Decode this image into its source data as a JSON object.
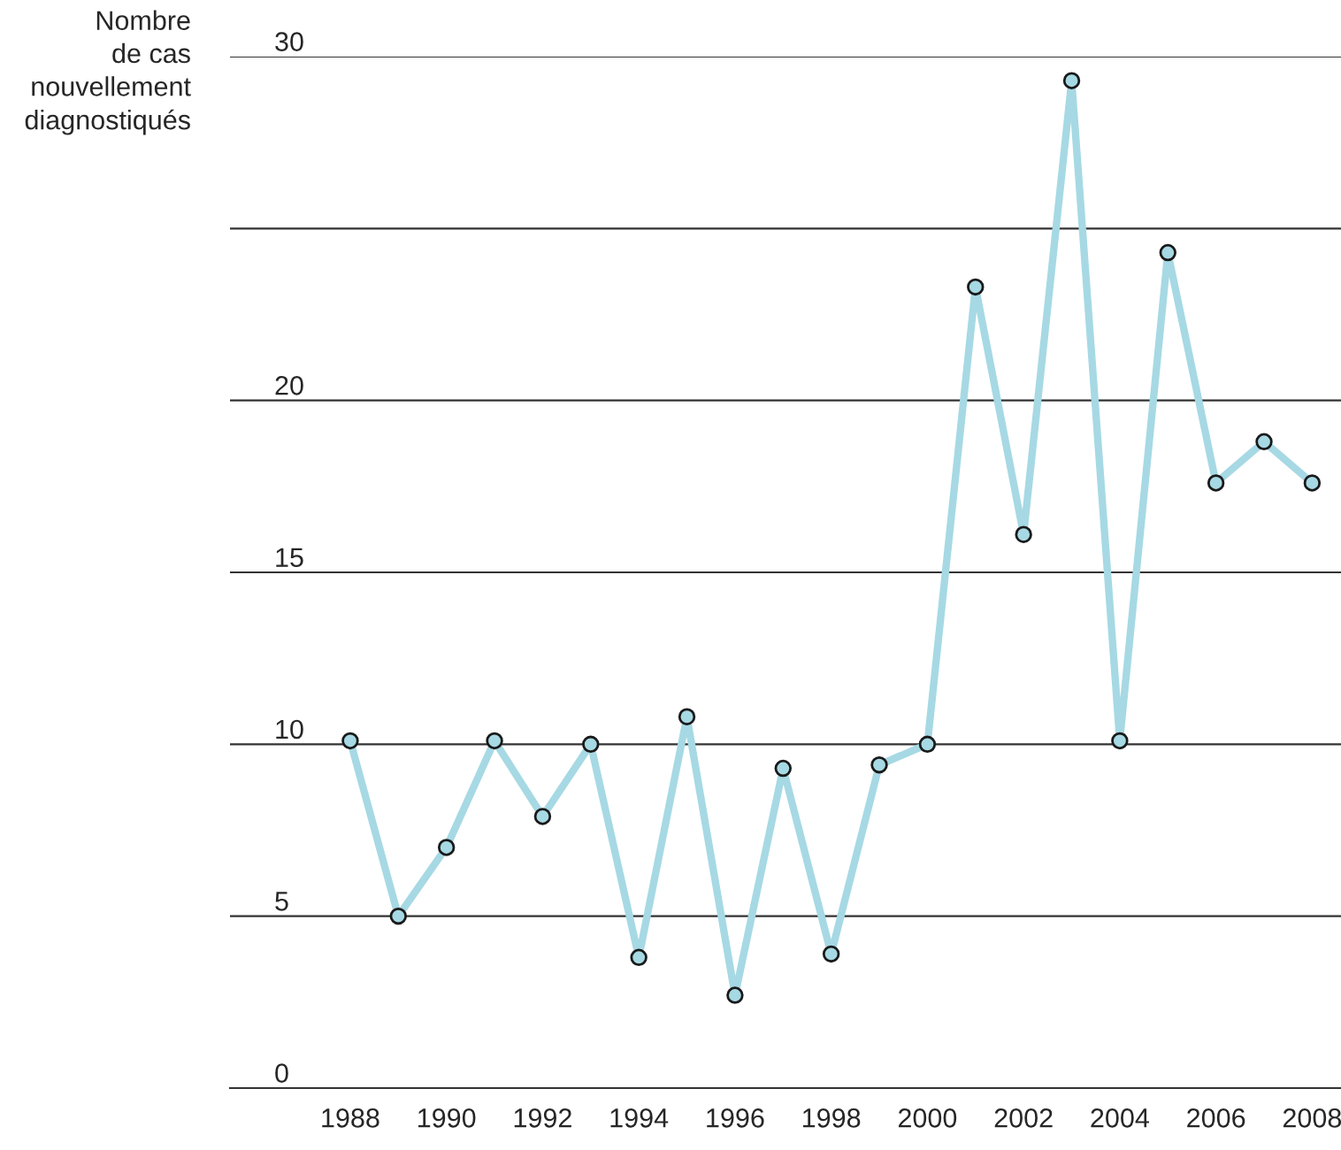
{
  "chart_data": {
    "type": "line",
    "ylabel": "Nombre\nde cas\nnouvellement\ndiagnostiqués",
    "x": [
      1988,
      1989,
      1990,
      1991,
      1992,
      1993,
      1994,
      1995,
      1996,
      1997,
      1998,
      1999,
      2000,
      2001,
      2002,
      2003,
      2004,
      2005,
      2006,
      2007,
      2008
    ],
    "series": [
      {
        "color": "#a6d9e4",
        "values": [
          10.1,
          5.0,
          7.0,
          10.1,
          7.9,
          10.0,
          3.8,
          10.8,
          2.7,
          9.3,
          3.9,
          9.4,
          10.0,
          23.3,
          16.1,
          29.3,
          10.1,
          24.3,
          17.6,
          18.8,
          17.6
        ]
      }
    ],
    "xlim": [
      1985.5,
      2008.6
    ],
    "xticks": [
      1988,
      1990,
      1992,
      1994,
      1996,
      1998,
      2000,
      2002,
      2004,
      2006,
      2008
    ],
    "ylim": [
      0,
      30
    ],
    "yticks": [
      0,
      5,
      10,
      15,
      20,
      {
        "value": 25,
        "label": null
      },
      30
    ],
    "grid": "y",
    "marker": "circle",
    "line_style": "solid",
    "legend": false
  }
}
